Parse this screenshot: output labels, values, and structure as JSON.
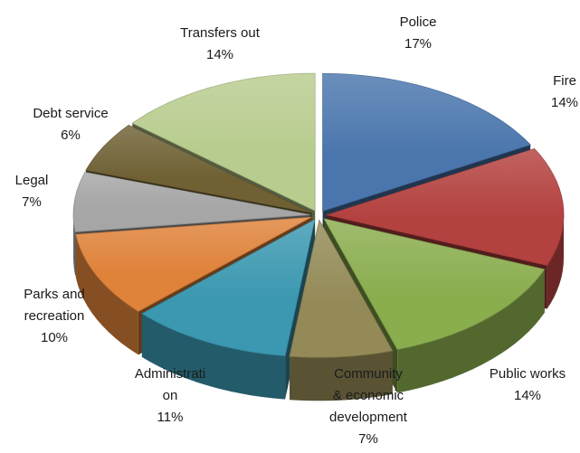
{
  "chart_data": {
    "type": "pie",
    "style": "3d-exploded",
    "slices": [
      {
        "label": "Police",
        "value": 17,
        "value_label": "17%",
        "color": "#4a76ad"
      },
      {
        "label": "Fire",
        "value": 14,
        "value_label": "14%",
        "color": "#b3413f"
      },
      {
        "label": "Public works",
        "value": 14,
        "value_label": "14%",
        "color": "#8aad4e"
      },
      {
        "label": "Community & economic development",
        "value": 7,
        "value_label": "7%",
        "color": "#948a57"
      },
      {
        "label": "Administration",
        "value": 11,
        "value_label": "11%",
        "color": "#3b98b0"
      },
      {
        "label": "Parks and recreation",
        "value": 10,
        "value_label": "10%",
        "color": "#df823a"
      },
      {
        "label": "Legal",
        "value": 7,
        "value_label": "7%",
        "color": "#a6a6a6"
      },
      {
        "label": "Debt service",
        "value": 6,
        "value_label": "6%",
        "color": "#6f6134"
      },
      {
        "label": "Transfers out",
        "value": 14,
        "value_label": "14%",
        "color": "#b8cc8e"
      }
    ]
  }
}
